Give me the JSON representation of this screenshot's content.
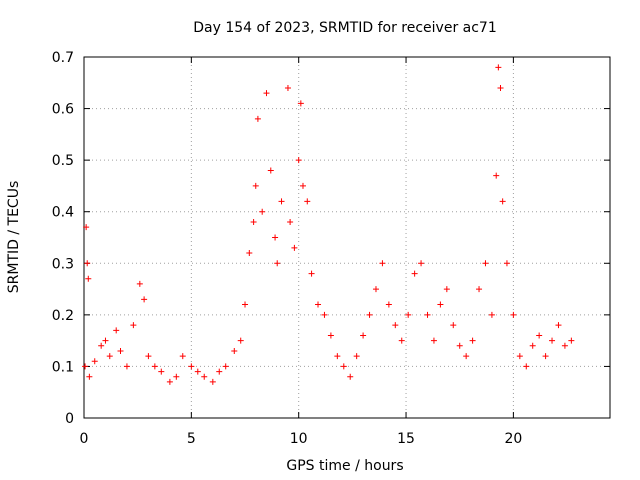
{
  "chart_data": {
    "type": "scatter",
    "title": "Day 154 of 2023, SRMTID for receiver ac71",
    "xlabel": "GPS time / hours",
    "ylabel": "SRMTID / TECUs",
    "xlim": [
      0,
      24.5
    ],
    "ylim": [
      0,
      0.7
    ],
    "x_ticks": [
      0,
      5,
      10,
      15,
      20
    ],
    "x_tick_labels": [
      "0",
      "5",
      "10",
      "15",
      "20"
    ],
    "y_ticks": [
      0,
      0.1,
      0.2,
      0.3,
      0.4,
      0.5,
      0.6,
      0.7
    ],
    "y_tick_labels": [
      "0",
      "0.1",
      "0.2",
      "0.3",
      "0.4",
      "0.5",
      "0.6",
      "0.7"
    ],
    "grid": true,
    "marker": "+",
    "color": "#ff0000",
    "series": [
      {
        "name": "ac71",
        "x": [
          0.05,
          0.1,
          0.15,
          0.2,
          0.25,
          0.5,
          0.8,
          1.0,
          1.2,
          1.5,
          1.7,
          2.0,
          2.3,
          2.6,
          2.8,
          3.0,
          3.3,
          3.6,
          4.0,
          4.3,
          4.6,
          5.0,
          5.3,
          5.6,
          6.0,
          6.3,
          6.6,
          7.0,
          7.3,
          7.5,
          7.7,
          7.9,
          8.0,
          8.1,
          8.3,
          8.5,
          8.7,
          8.9,
          9.0,
          9.2,
          9.5,
          9.6,
          9.8,
          10.0,
          10.1,
          10.2,
          10.4,
          10.6,
          10.9,
          11.2,
          11.5,
          11.8,
          12.1,
          12.4,
          12.7,
          13.0,
          13.3,
          13.6,
          13.9,
          14.2,
          14.5,
          14.8,
          15.1,
          15.4,
          15.7,
          16.0,
          16.3,
          16.6,
          16.9,
          17.2,
          17.5,
          17.8,
          18.1,
          18.4,
          18.7,
          19.0,
          19.2,
          19.3,
          19.4,
          19.5,
          19.7,
          20.0,
          20.3,
          20.6,
          20.9,
          21.2,
          21.5,
          21.8,
          22.1,
          22.4,
          22.7
        ],
        "y": [
          0.1,
          0.37,
          0.3,
          0.27,
          0.08,
          0.11,
          0.14,
          0.15,
          0.12,
          0.17,
          0.13,
          0.1,
          0.18,
          0.26,
          0.23,
          0.12,
          0.1,
          0.09,
          0.07,
          0.08,
          0.12,
          0.1,
          0.09,
          0.08,
          0.07,
          0.09,
          0.1,
          0.13,
          0.15,
          0.22,
          0.32,
          0.38,
          0.45,
          0.58,
          0.4,
          0.63,
          0.48,
          0.35,
          0.3,
          0.42,
          0.64,
          0.38,
          0.33,
          0.5,
          0.61,
          0.45,
          0.42,
          0.28,
          0.22,
          0.2,
          0.16,
          0.12,
          0.1,
          0.08,
          0.12,
          0.16,
          0.2,
          0.25,
          0.3,
          0.22,
          0.18,
          0.15,
          0.2,
          0.28,
          0.3,
          0.2,
          0.15,
          0.22,
          0.25,
          0.18,
          0.14,
          0.12,
          0.15,
          0.25,
          0.3,
          0.2,
          0.47,
          0.68,
          0.64,
          0.42,
          0.3,
          0.2,
          0.12,
          0.1,
          0.14,
          0.16,
          0.12,
          0.15,
          0.18,
          0.14,
          0.15
        ]
      }
    ]
  }
}
